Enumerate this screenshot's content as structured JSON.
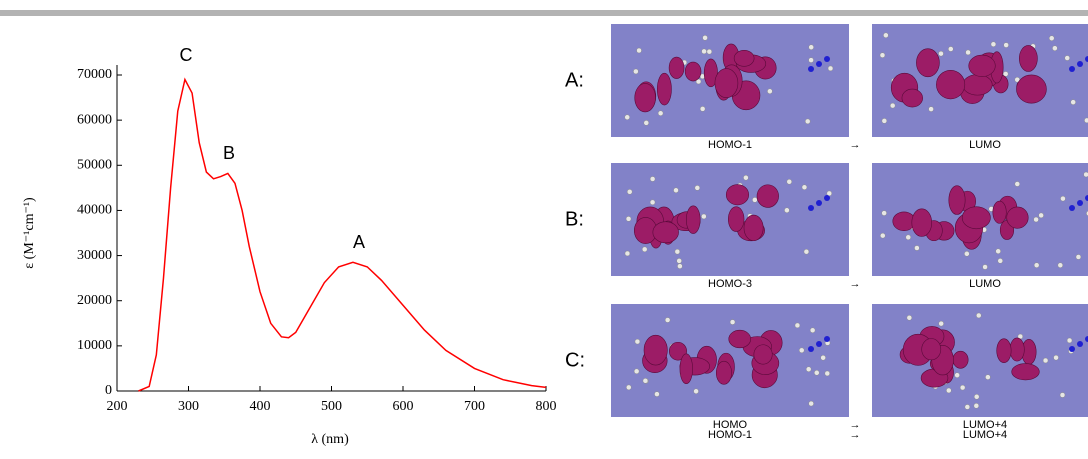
{
  "chart_data": {
    "type": "line",
    "xlabel": "λ (nm)",
    "ylabel": "ε (M⁻¹cm⁻¹)",
    "x": [
      230,
      245,
      255,
      265,
      275,
      285,
      295,
      305,
      315,
      325,
      335,
      345,
      355,
      365,
      375,
      385,
      400,
      415,
      430,
      440,
      450,
      470,
      490,
      510,
      530,
      550,
      570,
      600,
      630,
      660,
      700,
      740,
      780,
      800
    ],
    "series": [
      {
        "color": "#ff0000",
        "values": [
          0,
          1000,
          8000,
          25000,
          45000,
          62000,
          69000,
          66000,
          55000,
          48500,
          47000,
          47500,
          48200,
          46000,
          40000,
          32000,
          22000,
          15000,
          12000,
          11800,
          13000,
          18500,
          24000,
          27500,
          28500,
          27500,
          24500,
          19000,
          13500,
          9000,
          5000,
          2500,
          1200,
          800
        ]
      }
    ],
    "annotations": [
      "C",
      "B",
      "A"
    ],
    "xlim": [
      200,
      800
    ],
    "xticks": [
      200,
      300,
      400,
      500,
      600,
      700,
      800
    ],
    "ylim": [
      0,
      70000
    ],
    "yticks": [
      0,
      10000,
      20000,
      30000,
      40000,
      50000,
      60000,
      70000
    ],
    "grid": false
  },
  "transitions": [
    {
      "label": "A:",
      "from": [
        "HOMO-1"
      ],
      "arrow": [
        "→"
      ],
      "to": [
        "LUMO"
      ]
    },
    {
      "label": "B:",
      "from": [
        "HOMO-3"
      ],
      "arrow": [
        "→"
      ],
      "to": [
        "LUMO"
      ]
    },
    {
      "label": "C:",
      "from": [
        "HOMO",
        "HOMO-1"
      ],
      "arrow": [
        "→",
        "→"
      ],
      "to": [
        "LUMO+4",
        "LUMO+4"
      ]
    }
  ]
}
